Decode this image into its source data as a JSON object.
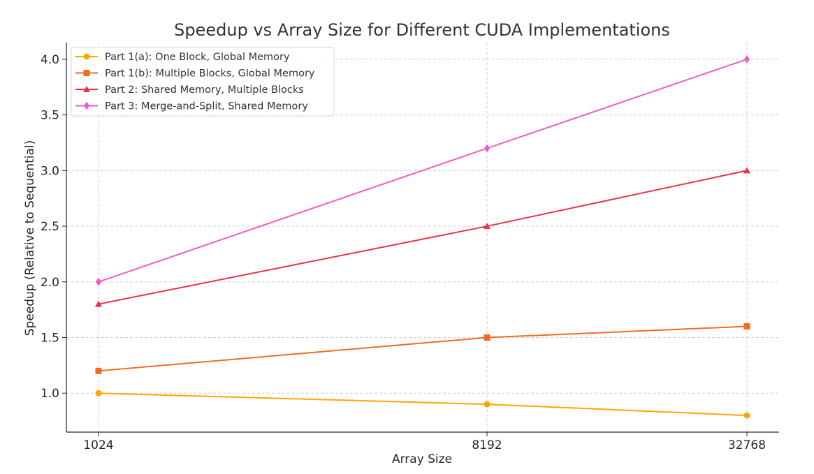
{
  "chart_data": {
    "type": "line",
    "title": "Speedup vs Array Size for Different CUDA Implementations",
    "xlabel": "Array Size",
    "ylabel": "Speedup (Relative to Sequential)",
    "categories": [
      "1024",
      "8192",
      "32768"
    ],
    "x_scale": "log2",
    "ylim": [
      0.65,
      4.15
    ],
    "yticks": [
      "1.0",
      "1.5",
      "2.0",
      "2.5",
      "3.0",
      "3.5",
      "4.0"
    ],
    "grid": true,
    "grid_style": "dashed",
    "legend_position": "top-left",
    "series": [
      {
        "name": "Part 1(a): One Block, Global Memory",
        "values": [
          1.0,
          0.9,
          0.8
        ],
        "color": "#FFA500",
        "marker": "circle"
      },
      {
        "name": "Part 1(b): Multiple Blocks, Global Memory",
        "values": [
          1.2,
          1.5,
          1.6
        ],
        "color": "#F26A21",
        "marker": "square"
      },
      {
        "name": "Part 2: Shared Memory, Multiple Blocks",
        "values": [
          1.8,
          2.5,
          3.0
        ],
        "color": "#E8334A",
        "marker": "triangle"
      },
      {
        "name": "Part 3: Merge-and-Split, Shared Memory",
        "values": [
          2.0,
          3.2,
          4.0
        ],
        "color": "#F15BC6",
        "marker": "diamond"
      }
    ]
  }
}
